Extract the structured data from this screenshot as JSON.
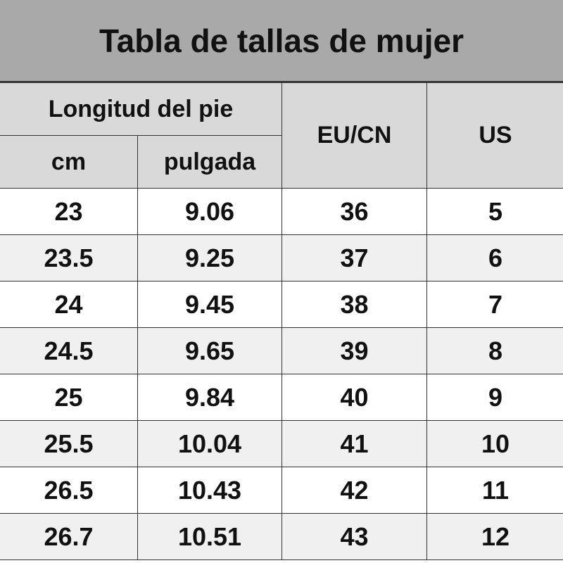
{
  "title": "Tabla de tallas de mujer",
  "headers": {
    "foot_length": "Longitud del pie",
    "cm": "cm",
    "inch": "pulgada",
    "eu_cn": "EU/CN",
    "us": "US"
  },
  "rows": [
    [
      "23",
      "9.06",
      "36",
      "5"
    ],
    [
      "23.5",
      "9.25",
      "37",
      "6"
    ],
    [
      "24",
      "9.45",
      "38",
      "7"
    ],
    [
      "24.5",
      "9.65",
      "39",
      "8"
    ],
    [
      "25",
      "9.84",
      "40",
      "9"
    ],
    [
      "25.5",
      "10.04",
      "41",
      "10"
    ],
    [
      "26.5",
      "10.43",
      "42",
      "11"
    ],
    [
      "26.7",
      "10.51",
      "43",
      "12"
    ]
  ],
  "colors": {
    "title_bg": "#a9a9a9",
    "header_bg": "#d9d9d9",
    "alt_row_bg": "#f0f0f0"
  }
}
